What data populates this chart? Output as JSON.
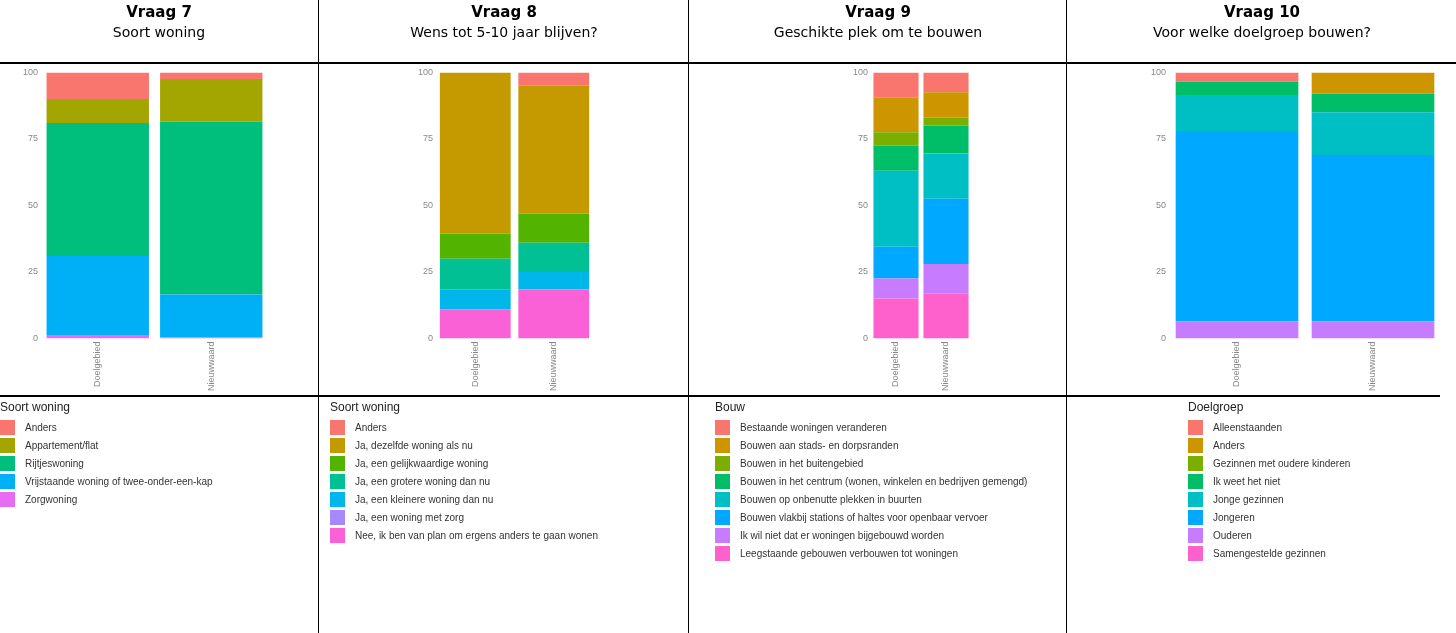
{
  "chart_data": [
    {
      "type": "bar",
      "title": "Vraag 7",
      "subtitle": "Soort woning",
      "stacked": true,
      "categories": [
        "Doelgebied",
        "Nieuwwaard"
      ],
      "ylim": [
        0,
        100
      ],
      "yticks": [
        0,
        25,
        50,
        75,
        100
      ],
      "grid": false,
      "legend": "bottom left",
      "legend_title": "Soort woning",
      "series": [
        {
          "name": "Zorgwoning",
          "color": "#e76bf3",
          "values": [
            1,
            0.5
          ]
        },
        {
          "name": "Vrijstaande woning of twee-onder-een-kap",
          "color": "#00b0f6",
          "values": [
            30,
            16
          ]
        },
        {
          "name": "Rijtjeswoning",
          "color": "#00bf7d",
          "values": [
            50,
            65
          ]
        },
        {
          "name": "Appartement/flat",
          "color": "#a3a500",
          "values": [
            9,
            16
          ]
        },
        {
          "name": "Anders",
          "color": "#f8766d",
          "values": [
            10,
            2.5
          ]
        }
      ]
    },
    {
      "type": "bar",
      "title": "Vraag 8",
      "subtitle": "Wens tot 5-10 jaar blijven?",
      "stacked": true,
      "categories": [
        "Doelgebied",
        "Nieuwwaard"
      ],
      "ylim": [
        0,
        100
      ],
      "yticks": [
        0,
        25,
        50,
        75,
        100
      ],
      "grid": false,
      "legend": "bottom left",
      "legend_title": "Soort woning",
      "series": [
        {
          "name": "Nee, ik ben van plan om ergens anders te gaan wonen",
          "color": "#fb61d7",
          "values": [
            11,
            18.5
          ]
        },
        {
          "name": "Ja, een woning met zorg",
          "color": "#a58aff",
          "values": [
            0,
            0
          ]
        },
        {
          "name": "Ja, een kleinere woning dan nu",
          "color": "#00b6eb",
          "values": [
            7.5,
            6.5
          ]
        },
        {
          "name": "Ja, een grotere woning dan nu",
          "color": "#00c094",
          "values": [
            11.5,
            11
          ]
        },
        {
          "name": "Ja, een gelijkwaardige woning",
          "color": "#53b400",
          "values": [
            9.5,
            11
          ]
        },
        {
          "name": "Ja, dezelfde woning als nu",
          "color": "#c49a00",
          "values": [
            60.5,
            48
          ]
        },
        {
          "name": "Anders",
          "color": "#f8766d",
          "values": [
            0,
            5
          ]
        }
      ]
    },
    {
      "type": "bar",
      "title": "Vraag 9",
      "subtitle": "Geschikte plek om te bouwen",
      "stacked": true,
      "categories": [
        "Doelgebied",
        "Nieuwwaard"
      ],
      "ylim": [
        0,
        100
      ],
      "yticks": [
        0,
        25,
        50,
        75,
        100
      ],
      "grid": false,
      "legend": "bottom left",
      "legend_title": "Bouw",
      "series": [
        {
          "name": "Leegstaande gebouwen verbouwen tot woningen",
          "color": "#ff61cc",
          "values": [
            15,
            17
          ]
        },
        {
          "name": "Ik wil niet dat er woningen bijgebouwd worden",
          "color": "#c77cff",
          "values": [
            7.5,
            11
          ]
        },
        {
          "name": "Bouwen vlakbij stations of haltes voor openbaar vervoer",
          "color": "#00a9ff",
          "values": [
            12,
            24.5
          ]
        },
        {
          "name": "Bouwen op onbenutte plekken in buurten",
          "color": "#00bfc4",
          "values": [
            28.5,
            17
          ]
        },
        {
          "name": "Bouwen in het centrum (wonen, winkelen en bedrijven gemengd)",
          "color": "#00be67",
          "values": [
            9.5,
            10.5
          ]
        },
        {
          "name": "Bouwen in het buitengebied",
          "color": "#7cae00",
          "values": [
            5,
            3
          ]
        },
        {
          "name": "Bouwen aan stads- en dorpsranden",
          "color": "#cd9600",
          "values": [
            13,
            9.5
          ]
        },
        {
          "name": "Bestaande woningen veranderen",
          "color": "#f8766d",
          "values": [
            9.5,
            7.5
          ]
        }
      ]
    },
    {
      "type": "bar",
      "title": "Vraag 10",
      "subtitle": "Voor welke doelgroep bouwen?",
      "stacked": true,
      "categories": [
        "Doelgebied",
        "Nieuwwaard"
      ],
      "ylim": [
        0,
        100
      ],
      "yticks": [
        0,
        25,
        50,
        75,
        100
      ],
      "grid": false,
      "legend": "bottom left",
      "legend_title": "Doelgroep",
      "series": [
        {
          "name": "Samengestelde gezinnen",
          "color": "#ff61cc",
          "values": [
            0,
            0
          ]
        },
        {
          "name": "Ouderen",
          "color": "#c77cff",
          "values": [
            6.5,
            6.5
          ]
        },
        {
          "name": "Jongeren",
          "color": "#00a9ff",
          "values": [
            71.5,
            62.5
          ]
        },
        {
          "name": "Jonge gezinnen",
          "color": "#00bfc4",
          "values": [
            13.5,
            16
          ]
        },
        {
          "name": "Ik weet het niet",
          "color": "#00be67",
          "values": [
            5,
            7
          ]
        },
        {
          "name": "Gezinnen met oudere kinderen",
          "color": "#7cae00",
          "values": [
            0,
            0
          ]
        },
        {
          "name": "Anders",
          "color": "#cd9600",
          "values": [
            0,
            8
          ]
        },
        {
          "name": "Alleenstaanden",
          "color": "#f8766d",
          "values": [
            3.5,
            0
          ]
        }
      ]
    }
  ]
}
